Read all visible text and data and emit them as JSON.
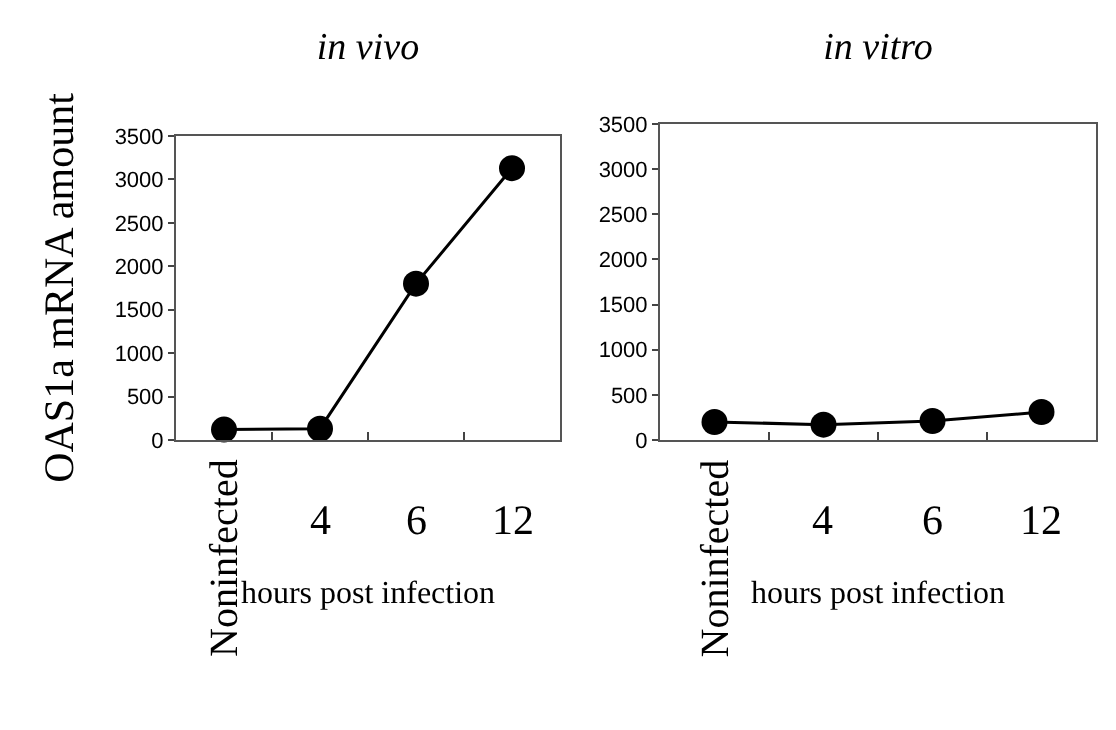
{
  "chart_data": [
    {
      "type": "line",
      "title": "in vivo",
      "ylabel": "OAS1a mRNA amount",
      "xlabel": "hours post infection",
      "categories": [
        "Noninfected",
        "4",
        "6",
        "12"
      ],
      "series": [
        {
          "color": "#000000",
          "values": [
            120,
            130,
            1800,
            3130
          ]
        }
      ],
      "ylim": [
        0,
        3500
      ],
      "yticks": [
        0,
        500,
        1000,
        1500,
        2000,
        2500,
        3000,
        3500
      ],
      "marker": "circle",
      "line_style": "solid"
    },
    {
      "type": "line",
      "title": "in vitro",
      "xlabel": "hours post infection",
      "categories": [
        "Noninfected",
        "4",
        "6",
        "12"
      ],
      "series": [
        {
          "color": "#000000",
          "values": [
            200,
            170,
            210,
            310
          ]
        }
      ],
      "ylim": [
        0,
        3500
      ],
      "yticks": [
        0,
        500,
        1000,
        1500,
        2000,
        2500,
        3000,
        3500
      ],
      "marker": "circle",
      "line_style": "solid"
    }
  ]
}
